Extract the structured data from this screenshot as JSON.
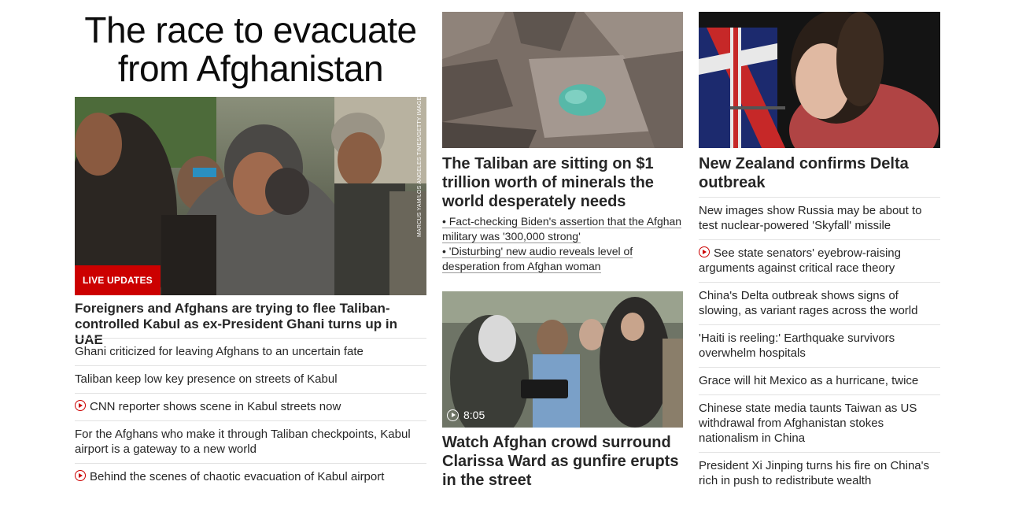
{
  "left": {
    "title": "The race to evacuate from Afghanistan",
    "photo_credit": "MARCUS YAM/LOS ANGELES TIMES/GETTY IMAGES",
    "badge": "LIVE UPDATES",
    "headline": "Foreigners and Afghans are trying to flee Taliban-controlled Kabul as ex-President Ghani turns up in UAE",
    "links": [
      {
        "text": "Ghani criticized for leaving Afghans to an uncertain fate",
        "video": false
      },
      {
        "text": "Taliban keep low key presence on streets of Kabul",
        "video": false
      },
      {
        "text": "CNN reporter shows scene in Kabul streets now",
        "video": true
      },
      {
        "text": "For the Afghans who make it through Taliban checkpoints, Kabul airport is a gateway to a new world",
        "video": false
      },
      {
        "text": "Behind the scenes of chaotic evacuation of Kabul airport",
        "video": true
      }
    ]
  },
  "middle": {
    "story1_headline": "The Taliban are sitting on $1 trillion worth of minerals the world desperately needs",
    "bullets": [
      "• Fact-checking Biden's assertion that the Afghan military was '300,000 strong'",
      "• 'Disturbing' new audio reveals level of desperation from Afghan woman"
    ],
    "video_duration": "8:05",
    "story2_headline": "Watch Afghan crowd surround Clarissa Ward as gunfire erupts in the street"
  },
  "right": {
    "headline": "New Zealand confirms Delta outbreak",
    "links": [
      {
        "text": "New images show Russia may be about to test nuclear-powered 'Skyfall' missile",
        "video": false
      },
      {
        "text": "See state senators' eyebrow-raising arguments against critical race theory",
        "video": true
      },
      {
        "text": "China's Delta outbreak shows signs of slowing, as variant rages across the world",
        "video": false
      },
      {
        "text": "'Haiti is reeling:' Earthquake survivors overwhelm hospitals",
        "video": false
      },
      {
        "text": "Grace will hit Mexico as a hurricane, twice",
        "video": false
      },
      {
        "text": "Chinese state media taunts Taiwan as US withdrawal from Afghanistan stokes nationalism in China",
        "video": false
      },
      {
        "text": "President Xi Jinping turns his fire on China's rich in push to redistribute wealth",
        "video": false
      }
    ]
  },
  "colors": {
    "accent": "#cc0000",
    "text": "#262626",
    "divider": "#e2e2e2"
  },
  "icons": {
    "video": "play-circle-icon"
  }
}
